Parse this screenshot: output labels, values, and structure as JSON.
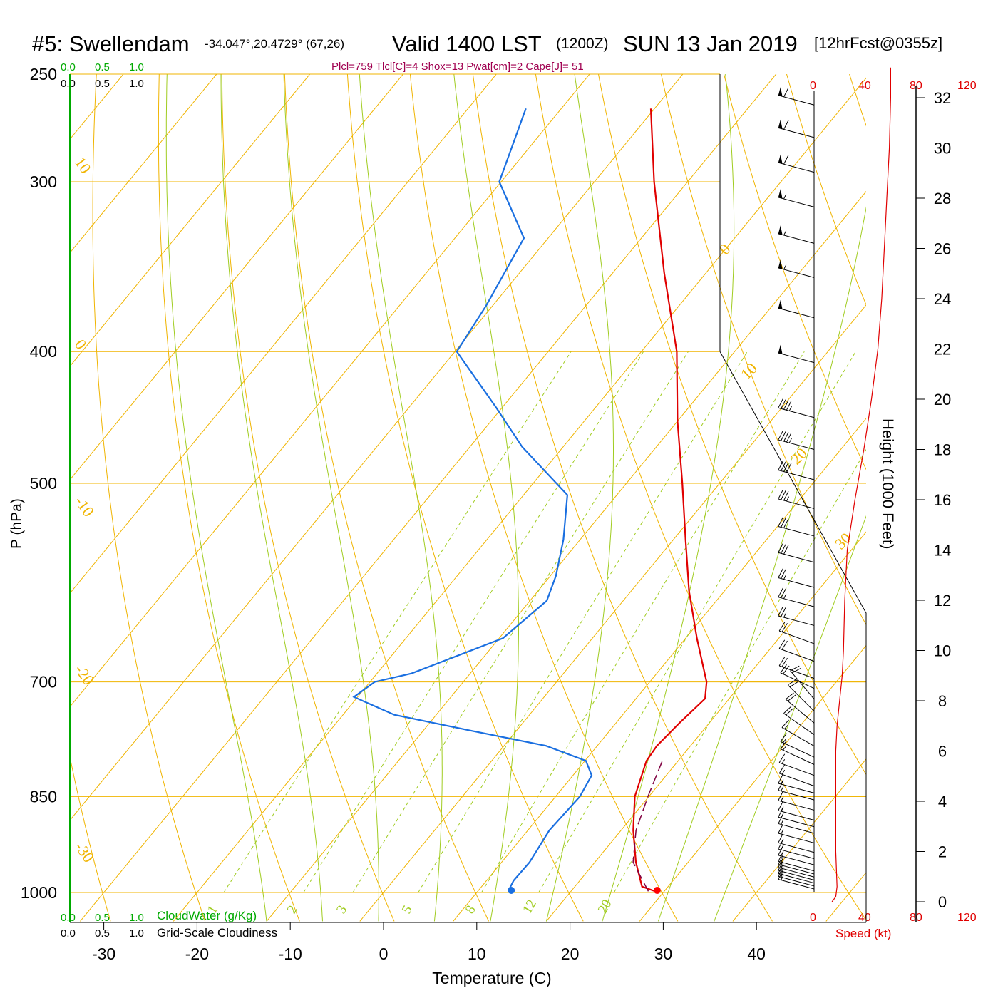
{
  "header": {
    "station": "#5: Swellendam",
    "coords": "-34.047°,20.4729° (67,26)",
    "valid": "Valid 1400 LST",
    "zulu": "(1200Z)",
    "date": "SUN 13 Jan 2019",
    "forecast": "[12hrFcst@0355z]",
    "indices": "Plcl=759 Tlcl[C]=4 Shox=13 Pwat[cm]=2 Cape[J]= 51"
  },
  "scales": {
    "cloudwater_ticks": [
      "0.0",
      "0.5",
      "1.0"
    ],
    "cloudiness_ticks": [
      "0.0",
      "0.5",
      "1.0"
    ],
    "cloudwater_label": "CloudWater (g/Kg)",
    "cloudiness_label": "Grid-Scale Cloudiness",
    "speed_ticks": [
      "0",
      "40",
      "80",
      "120"
    ],
    "speed_label": "Speed (kt)"
  },
  "colors": {
    "isobar": "#f0b400",
    "dry_adiabat": "#f0b400",
    "moist_adiabat": "#a0cc20",
    "mixing_ratio": "#a0cc20",
    "temperature": "#e00000",
    "dewpoint": "#1a6fe0",
    "parcel": "#800040",
    "cloudwater": "#00aa00",
    "wind_speed": "#e00000",
    "indices": "#a00050"
  },
  "chart_data": {
    "type": "skew-t",
    "xlabel": "Temperature (C)",
    "ylabel": "P (hPa)",
    "y2label": "Height (1000 Feet)",
    "temperature_ticks": [
      -30,
      -20,
      -10,
      0,
      10,
      20,
      30,
      40
    ],
    "pressure_ticks": [
      250,
      300,
      400,
      500,
      700,
      850,
      1000
    ],
    "height_ticks": [
      0,
      2,
      4,
      6,
      8,
      10,
      12,
      14,
      16,
      18,
      20,
      22,
      24,
      26,
      28,
      30,
      32
    ],
    "temperature_profile": [
      {
        "p": 1000,
        "t": 29.5
      },
      {
        "p": 990,
        "t": 27.2
      },
      {
        "p": 950,
        "t": 24.4
      },
      {
        "p": 900,
        "t": 21.3
      },
      {
        "p": 850,
        "t": 18.5
      },
      {
        "p": 800,
        "t": 16.6
      },
      {
        "p": 780,
        "t": 16.4
      },
      {
        "p": 750,
        "t": 16.8
      },
      {
        "p": 720,
        "t": 17.4
      },
      {
        "p": 700,
        "t": 16.1
      },
      {
        "p": 650,
        "t": 11.2
      },
      {
        "p": 600,
        "t": 6.2
      },
      {
        "p": 550,
        "t": 1.3
      },
      {
        "p": 500,
        "t": -4.0
      },
      {
        "p": 450,
        "t": -10.0
      },
      {
        "p": 400,
        "t": -16.2
      },
      {
        "p": 350,
        "t": -24.5
      },
      {
        "p": 300,
        "t": -33.6
      },
      {
        "p": 265,
        "t": -40.4
      }
    ],
    "dewpoint_profile": [
      {
        "p": 1000,
        "td": 13.7
      },
      {
        "p": 995,
        "td": 13.2
      },
      {
        "p": 980,
        "td": 12.9
      },
      {
        "p": 950,
        "td": 13.0
      },
      {
        "p": 900,
        "td": 12.3
      },
      {
        "p": 850,
        "td": 12.6
      },
      {
        "p": 820,
        "td": 12.0
      },
      {
        "p": 800,
        "td": 10.1
      },
      {
        "p": 780,
        "td": 4.5
      },
      {
        "p": 760,
        "td": -5.0
      },
      {
        "p": 740,
        "td": -14.5
      },
      {
        "p": 718,
        "td": -20.4
      },
      {
        "p": 700,
        "td": -19.5
      },
      {
        "p": 690,
        "td": -16.3
      },
      {
        "p": 650,
        "td": -9.6
      },
      {
        "p": 610,
        "td": -8.2
      },
      {
        "p": 585,
        "td": -9.4
      },
      {
        "p": 550,
        "td": -11.8
      },
      {
        "p": 510,
        "td": -15.3
      },
      {
        "p": 470,
        "td": -24.4
      },
      {
        "p": 440,
        "td": -30.6
      },
      {
        "p": 400,
        "td": -39.8
      },
      {
        "p": 370,
        "td": -40.7
      },
      {
        "p": 330,
        "td": -42.6
      },
      {
        "p": 300,
        "td": -50.2
      },
      {
        "p": 265,
        "td": -53.8
      }
    ],
    "parcel_path": [
      {
        "p": 998,
        "t": 28.3
      },
      {
        "p": 950,
        "t": 24.1
      },
      {
        "p": 900,
        "t": 21.6
      },
      {
        "p": 850,
        "t": 19.9
      },
      {
        "p": 800,
        "t": 18.3
      }
    ],
    "surface_markers": {
      "temperature": 29.5,
      "dewpoint": 13.7,
      "p": 1000
    },
    "wind_speed_profile": [
      {
        "h": 0.0,
        "v": 14
      },
      {
        "h": 0.2,
        "v": 17
      },
      {
        "h": 0.6,
        "v": 18
      },
      {
        "h": 2.0,
        "v": 17
      },
      {
        "h": 4.0,
        "v": 17
      },
      {
        "h": 6.0,
        "v": 17
      },
      {
        "h": 7.0,
        "v": 18
      },
      {
        "h": 8.0,
        "v": 20
      },
      {
        "h": 9.0,
        "v": 22
      },
      {
        "h": 10.0,
        "v": 23
      },
      {
        "h": 12.0,
        "v": 24
      },
      {
        "h": 14.0,
        "v": 26
      },
      {
        "h": 16.0,
        "v": 32
      },
      {
        "h": 18.0,
        "v": 39
      },
      {
        "h": 20.0,
        "v": 45
      },
      {
        "h": 22.0,
        "v": 50
      },
      {
        "h": 24.0,
        "v": 53
      },
      {
        "h": 26.0,
        "v": 55
      },
      {
        "h": 28.0,
        "v": 57
      },
      {
        "h": 30.0,
        "v": 59
      },
      {
        "h": 32.0,
        "v": 60
      },
      {
        "h": 33.2,
        "v": 60
      }
    ],
    "wind_barbs": [
      {
        "p": 1000,
        "dir": 285,
        "spd": 15
      },
      {
        "p": 995,
        "dir": 285,
        "spd": 15
      },
      {
        "p": 990,
        "dir": 285,
        "spd": 15
      },
      {
        "p": 985,
        "dir": 285,
        "spd": 15
      },
      {
        "p": 980,
        "dir": 285,
        "spd": 15
      },
      {
        "p": 975,
        "dir": 285,
        "spd": 15
      },
      {
        "p": 970,
        "dir": 285,
        "spd": 15
      },
      {
        "p": 960,
        "dir": 285,
        "spd": 15
      },
      {
        "p": 950,
        "dir": 285,
        "spd": 15
      },
      {
        "p": 940,
        "dir": 285,
        "spd": 15
      },
      {
        "p": 925,
        "dir": 285,
        "spd": 15
      },
      {
        "p": 910,
        "dir": 285,
        "spd": 15
      },
      {
        "p": 900,
        "dir": 285,
        "spd": 15
      },
      {
        "p": 890,
        "dir": 285,
        "spd": 15
      },
      {
        "p": 875,
        "dir": 285,
        "spd": 15
      },
      {
        "p": 860,
        "dir": 285,
        "spd": 15
      },
      {
        "p": 850,
        "dir": 285,
        "spd": 15
      },
      {
        "p": 840,
        "dir": 290,
        "spd": 15
      },
      {
        "p": 825,
        "dir": 290,
        "spd": 15
      },
      {
        "p": 810,
        "dir": 295,
        "spd": 15
      },
      {
        "p": 800,
        "dir": 295,
        "spd": 15
      },
      {
        "p": 785,
        "dir": 300,
        "spd": 15
      },
      {
        "p": 770,
        "dir": 305,
        "spd": 20
      },
      {
        "p": 755,
        "dir": 310,
        "spd": 20
      },
      {
        "p": 740,
        "dir": 315,
        "spd": 20
      },
      {
        "p": 725,
        "dir": 320,
        "spd": 20
      },
      {
        "p": 712,
        "dir": 295,
        "spd": 20
      },
      {
        "p": 700,
        "dir": 290,
        "spd": 20
      },
      {
        "p": 680,
        "dir": 290,
        "spd": 20
      },
      {
        "p": 660,
        "dir": 290,
        "spd": 20
      },
      {
        "p": 640,
        "dir": 285,
        "spd": 25
      },
      {
        "p": 620,
        "dir": 285,
        "spd": 25
      },
      {
        "p": 600,
        "dir": 285,
        "spd": 25
      },
      {
        "p": 575,
        "dir": 285,
        "spd": 30
      },
      {
        "p": 550,
        "dir": 285,
        "spd": 30
      },
      {
        "p": 525,
        "dir": 285,
        "spd": 35
      },
      {
        "p": 500,
        "dir": 285,
        "spd": 40
      },
      {
        "p": 475,
        "dir": 285,
        "spd": 45
      },
      {
        "p": 450,
        "dir": 285,
        "spd": 45
      },
      {
        "p": 410,
        "dir": 285,
        "spd": 50
      },
      {
        "p": 380,
        "dir": 285,
        "spd": 50
      },
      {
        "p": 355,
        "dir": 285,
        "spd": 55
      },
      {
        "p": 335,
        "dir": 285,
        "spd": 55
      },
      {
        "p": 315,
        "dir": 285,
        "spd": 55
      },
      {
        "p": 297,
        "dir": 285,
        "spd": 60
      },
      {
        "p": 280,
        "dir": 285,
        "spd": 60
      },
      {
        "p": 265,
        "dir": 285,
        "spd": 60
      }
    ],
    "dry_adiabat_labels": [
      {
        "side": "left",
        "p": 290,
        "text": "10"
      },
      {
        "side": "left",
        "p": 395,
        "text": "0"
      },
      {
        "side": "left",
        "p": 515,
        "text": "-10"
      },
      {
        "side": "left",
        "p": 685,
        "text": "-20"
      },
      {
        "side": "left",
        "p": 925,
        "text": "-30"
      },
      {
        "side": "right",
        "p": 340,
        "text": "0"
      },
      {
        "side": "right",
        "p": 420,
        "text": "10"
      },
      {
        "side": "right",
        "p": 485,
        "text": "20"
      },
      {
        "side": "right",
        "p": 560,
        "text": "30"
      }
    ],
    "mixing_ratio_labels": [
      "1",
      "2",
      "3",
      "5",
      "8",
      "12",
      "20"
    ]
  }
}
